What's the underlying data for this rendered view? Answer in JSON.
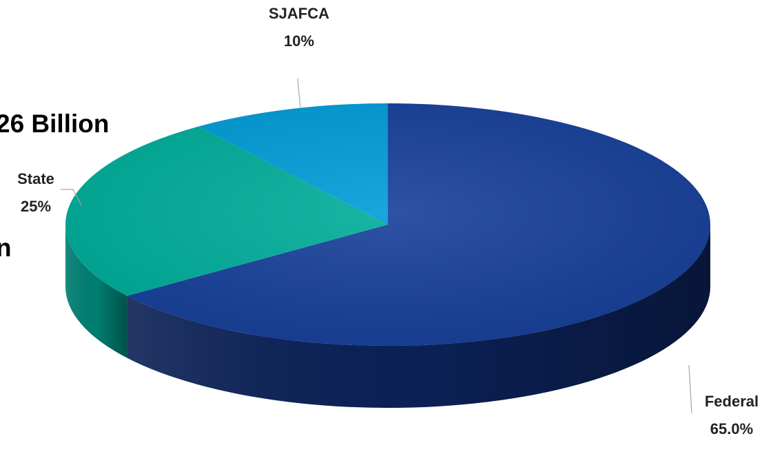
{
  "title_lines": [
    "26 Billion",
    "n"
  ],
  "chart_data": {
    "type": "pie",
    "title": "26 Billion n",
    "categories": [
      "Federal",
      "State",
      "SJAFCA"
    ],
    "values": [
      65.0,
      25,
      10
    ],
    "data_labels": [
      "65.0%",
      "25%",
      "10%"
    ],
    "colors": [
      "#17409A",
      "#00AD9A",
      "#009CD8"
    ],
    "dark_colors": [
      "#0B2156",
      "#007E71",
      "#006E99"
    ],
    "three_d": true,
    "legend": "none"
  }
}
